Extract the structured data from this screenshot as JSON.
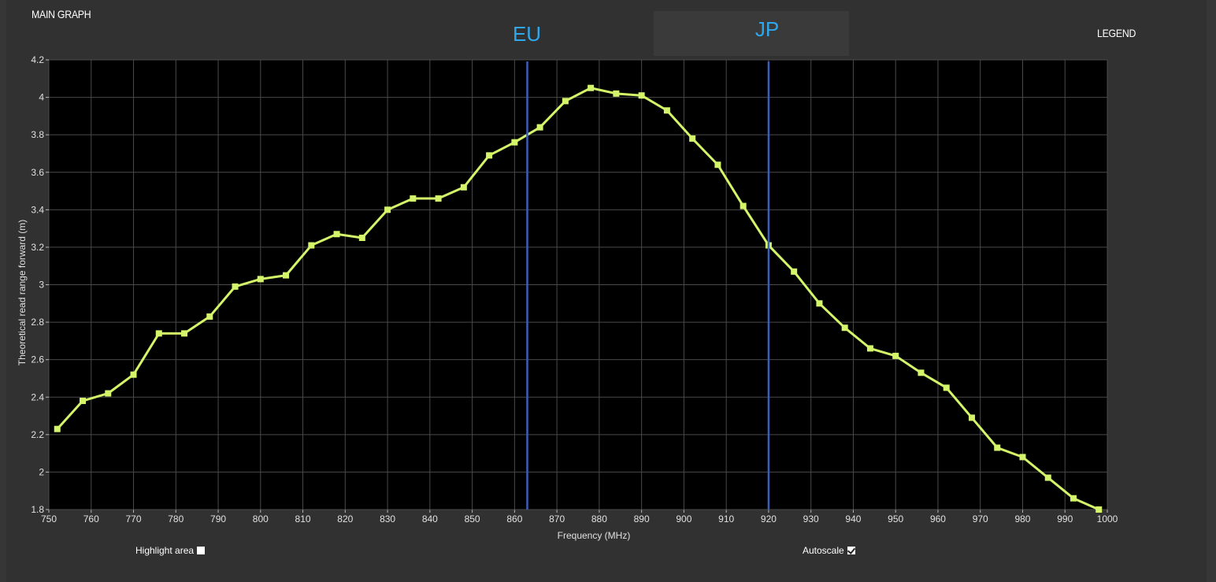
{
  "header": {
    "title": "MAIN GRAPH",
    "legend_label": "LEGEND"
  },
  "regions": [
    {
      "label": "EU",
      "x": 863,
      "color": "#2ea8ec"
    },
    {
      "label": "JP",
      "x": 920,
      "color": "#2ea8ec"
    }
  ],
  "controls": {
    "highlight_label": "Highlight area",
    "highlight_checked": false,
    "autoscale_label": "Autoscale",
    "autoscale_checked": true
  },
  "colors": {
    "background": "#313131",
    "plot_background": "#000000",
    "grid": "#4a4a4a",
    "series": "#d4f56a",
    "marker_line": "#3a5fb8"
  },
  "chart_data": {
    "type": "line",
    "title": "",
    "xlabel": "Frequency (MHz)",
    "ylabel": "Theoretical read range forward (m)",
    "xlim": [
      750,
      1000
    ],
    "ylim": [
      1.8,
      4.2
    ],
    "xticks": [
      750,
      760,
      770,
      780,
      790,
      800,
      810,
      820,
      830,
      840,
      850,
      860,
      870,
      880,
      890,
      900,
      910,
      920,
      930,
      940,
      950,
      960,
      970,
      980,
      990,
      1000
    ],
    "yticks": [
      "1.8",
      "2",
      "2.2",
      "2.4",
      "2.6",
      "2.8",
      "3",
      "3.2",
      "3.4",
      "3.6",
      "3.8",
      "4",
      "4.2"
    ],
    "grid": true,
    "series": [
      {
        "x": [
          752,
          758,
          764,
          770,
          776,
          782,
          788,
          794,
          800,
          806,
          812,
          818,
          824,
          830,
          836,
          842,
          848,
          854,
          860,
          866,
          872,
          878,
          884,
          890,
          896,
          902,
          908,
          914,
          920,
          926,
          932,
          938,
          944,
          950,
          956,
          962,
          968,
          974,
          980,
          986,
          992,
          998
        ],
        "y": [
          2.23,
          2.38,
          2.42,
          2.52,
          2.74,
          2.74,
          2.83,
          2.99,
          3.03,
          3.05,
          3.21,
          3.27,
          3.25,
          3.4,
          3.46,
          3.46,
          3.52,
          3.69,
          3.76,
          3.84,
          3.98,
          4.05,
          4.02,
          4.01,
          3.93,
          3.78,
          3.64,
          3.42,
          3.21,
          3.07,
          2.9,
          2.77,
          2.66,
          2.62,
          2.53,
          2.45,
          2.29,
          2.13,
          2.08,
          1.97,
          1.86,
          1.8
        ]
      }
    ]
  }
}
